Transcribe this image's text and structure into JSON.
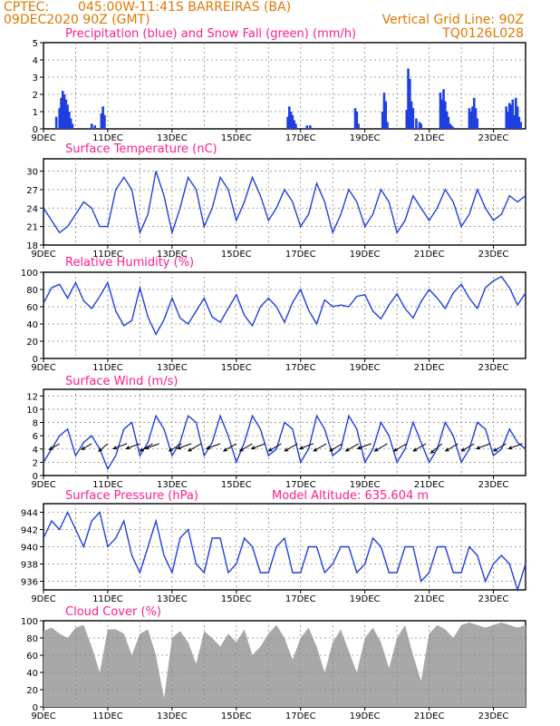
{
  "header": {
    "source": "CPTEC:",
    "location": "045:00W-11:41S  BARREIRAS (BA)",
    "init": "09DEC2020 90Z (GMT)",
    "vgrid": "Vertical Grid Line: 90Z",
    "model": "TQ0126L028"
  },
  "colors": {
    "header": "#e07800",
    "panel_title": "#ff1e8c",
    "line": "#1f3fe0",
    "precip": "#1f3fe0",
    "snow": "#00a000",
    "cloud": "#a8a8a8"
  },
  "chart_data": [
    {
      "type": "bar",
      "title": "Precipitation (blue) and Snow Fall (green) (mm/h)",
      "ylim": [
        0,
        5
      ],
      "yticks": [
        0,
        1,
        2,
        3,
        4,
        5
      ],
      "xlabels": [
        "9DEC",
        "11DEC",
        "13DEC",
        "15DEC",
        "17DEC",
        "19DEC",
        "21DEC",
        "23DEC"
      ],
      "x_days": [
        0,
        15
      ],
      "series": [
        {
          "name": "Precipitation",
          "x": [
            0.4,
            0.5,
            0.55,
            0.6,
            0.65,
            0.7,
            0.75,
            0.8,
            0.85,
            0.9,
            1.5,
            1.6,
            1.8,
            1.85,
            1.9,
            7.6,
            7.65,
            7.7,
            7.75,
            7.8,
            7.85,
            8.2,
            8.3,
            9.7,
            9.75,
            9.8,
            10.55,
            10.6,
            10.65,
            10.7,
            11.3,
            11.35,
            11.4,
            11.45,
            11.5,
            11.6,
            11.7,
            11.75,
            12.35,
            12.4,
            12.45,
            12.5,
            12.55,
            12.6,
            12.65,
            12.7,
            12.75,
            13.25,
            13.3,
            13.35,
            13.4,
            13.45,
            13.5,
            14.4,
            14.45,
            14.5,
            14.55,
            14.6,
            14.65,
            14.7,
            14.75,
            14.8,
            14.85
          ],
          "values": [
            0.7,
            1.2,
            1.8,
            2.2,
            2.0,
            1.7,
            1.4,
            1.0,
            0.6,
            0.3,
            0.3,
            0.2,
            0.9,
            1.3,
            0.8,
            0.7,
            1.3,
            1.0,
            0.8,
            0.5,
            0.3,
            0.2,
            0.2,
            1.2,
            1.0,
            0.3,
            1.0,
            2.1,
            1.6,
            0.4,
            1.1,
            3.5,
            2.9,
            1.6,
            1.2,
            0.6,
            0.4,
            0.3,
            2.1,
            1.7,
            2.3,
            1.6,
            1.0,
            0.7,
            0.3,
            0.2,
            0.1,
            1.2,
            1.0,
            1.3,
            1.8,
            1.2,
            0.6,
            1.3,
            1.0,
            1.5,
            1.4,
            1.7,
            0.8,
            1.8,
            1.3,
            0.7,
            0.4
          ]
        },
        {
          "name": "Snow Fall",
          "x": [],
          "values": []
        }
      ]
    },
    {
      "type": "line",
      "title": "Surface Temperature (nC)",
      "ylim": [
        18,
        32
      ],
      "yticks": [
        18,
        21,
        24,
        27,
        30
      ],
      "xlabels": [
        "9DEC",
        "11DEC",
        "13DEC",
        "15DEC",
        "17DEC",
        "19DEC",
        "21DEC",
        "23DEC"
      ],
      "x_days": [
        0,
        15
      ],
      "x": [
        0,
        0.25,
        0.5,
        0.75,
        1,
        1.25,
        1.5,
        1.75,
        2,
        2.25,
        2.5,
        2.75,
        3,
        3.25,
        3.5,
        3.75,
        4,
        4.25,
        4.5,
        4.75,
        5,
        5.25,
        5.5,
        5.75,
        6,
        6.25,
        6.5,
        6.75,
        7,
        7.25,
        7.5,
        7.75,
        8,
        8.25,
        8.5,
        8.75,
        9,
        9.25,
        9.5,
        9.75,
        10,
        10.25,
        10.5,
        10.75,
        11,
        11.25,
        11.5,
        11.75,
        12,
        12.25,
        12.5,
        12.75,
        13,
        13.25,
        13.5,
        13.75,
        14,
        14.25,
        14.5,
        14.75,
        15
      ],
      "values": [
        24,
        22,
        20,
        21,
        23,
        25,
        24,
        21,
        21,
        27,
        29,
        27,
        20,
        23,
        30,
        26,
        20,
        24,
        29,
        27,
        21,
        24,
        29,
        27,
        22,
        25,
        29,
        26,
        22,
        24,
        27,
        25,
        21,
        23,
        28,
        25,
        20,
        23,
        27,
        25,
        21,
        23,
        27,
        25,
        20,
        22,
        26,
        24,
        22,
        24,
        27,
        25,
        21,
        23,
        27,
        24,
        22,
        23,
        26,
        25,
        26
      ]
    },
    {
      "type": "line",
      "title": "Relative Humidity (%)",
      "ylim": [
        0,
        100
      ],
      "yticks": [
        0,
        20,
        40,
        60,
        80,
        100
      ],
      "xlabels": [
        "9DEC",
        "11DEC",
        "13DEC",
        "15DEC",
        "17DEC",
        "19DEC",
        "21DEC",
        "23DEC"
      ],
      "x_days": [
        0,
        15
      ],
      "x": [
        0,
        0.25,
        0.5,
        0.75,
        1,
        1.25,
        1.5,
        1.75,
        2,
        2.25,
        2.5,
        2.75,
        3,
        3.25,
        3.5,
        3.75,
        4,
        4.25,
        4.5,
        4.75,
        5,
        5.25,
        5.5,
        5.75,
        6,
        6.25,
        6.5,
        6.75,
        7,
        7.25,
        7.5,
        7.75,
        8,
        8.25,
        8.5,
        8.75,
        9,
        9.25,
        9.5,
        9.75,
        10,
        10.25,
        10.5,
        10.75,
        11,
        11.25,
        11.5,
        11.75,
        12,
        12.25,
        12.5,
        12.75,
        13,
        13.25,
        13.5,
        13.75,
        14,
        14.25,
        14.5,
        14.75,
        15
      ],
      "values": [
        64,
        82,
        86,
        70,
        88,
        67,
        58,
        72,
        88,
        55,
        38,
        44,
        82,
        48,
        28,
        45,
        70,
        47,
        40,
        55,
        70,
        48,
        42,
        58,
        74,
        50,
        38,
        60,
        70,
        60,
        42,
        65,
        80,
        56,
        40,
        68,
        60,
        62,
        60,
        72,
        74,
        55,
        46,
        62,
        75,
        58,
        47,
        66,
        80,
        70,
        58,
        76,
        86,
        70,
        58,
        82,
        90,
        95,
        82,
        62,
        76
      ]
    },
    {
      "type": "line",
      "title": "Surface Wind (m/s)",
      "ylim": [
        0,
        13
      ],
      "yticks": [
        0,
        2,
        4,
        6,
        8,
        10,
        12
      ],
      "xlabels": [
        "9DEC",
        "11DEC",
        "13DEC",
        "15DEC",
        "17DEC",
        "19DEC",
        "21DEC",
        "23DEC"
      ],
      "x_days": [
        0,
        15
      ],
      "x": [
        0,
        0.25,
        0.5,
        0.75,
        1,
        1.25,
        1.5,
        1.75,
        2,
        2.25,
        2.5,
        2.75,
        3,
        3.25,
        3.5,
        3.75,
        4,
        4.25,
        4.5,
        4.75,
        5,
        5.25,
        5.5,
        5.75,
        6,
        6.25,
        6.5,
        6.75,
        7,
        7.25,
        7.5,
        7.75,
        8,
        8.25,
        8.5,
        8.75,
        9,
        9.25,
        9.5,
        9.75,
        10,
        10.25,
        10.5,
        10.75,
        11,
        11.25,
        11.5,
        11.75,
        12,
        12.25,
        12.5,
        12.75,
        13,
        13.25,
        13.5,
        13.75,
        14,
        14.25,
        14.5,
        14.75,
        15
      ],
      "values": [
        2,
        4,
        6,
        7,
        3,
        5,
        6,
        4,
        1,
        3,
        7,
        8,
        3,
        5,
        9,
        7,
        3,
        5,
        9,
        8,
        3,
        5,
        9,
        6,
        2,
        5,
        9,
        7,
        3,
        4,
        8,
        7,
        2,
        4,
        9,
        7,
        3,
        4,
        9,
        7,
        2,
        4,
        8,
        6,
        2,
        4,
        8,
        5,
        2,
        4,
        8,
        6,
        2,
        4,
        8,
        7,
        3,
        4,
        7,
        5,
        4
      ],
      "wind_vectors": {
        "x": [
          0.5,
          1.5,
          2.0,
          2.6,
          3.0,
          3.4,
          3.6,
          4.3,
          4.6,
          4.9,
          5.5,
          6.0,
          6.5,
          6.9,
          7.4,
          7.9,
          8.4,
          8.8,
          9.3,
          9.8,
          10.2,
          10.7,
          11.3,
          11.9,
          12.4,
          12.9,
          13.4,
          13.9,
          14.4,
          14.9
        ],
        "dir_deg": [
          60,
          60,
          50,
          70,
          70,
          60,
          70,
          60,
          70,
          60,
          70,
          60,
          60,
          70,
          60,
          60,
          70,
          60,
          60,
          60,
          70,
          60,
          60,
          60,
          50,
          60,
          60,
          70,
          60,
          70
        ],
        "speed": [
          4,
          4,
          4,
          5,
          5,
          5,
          5,
          5,
          5,
          5,
          5,
          5,
          5,
          5,
          5,
          5,
          5,
          5,
          5,
          5,
          5,
          5,
          5,
          5,
          5,
          5,
          5,
          5,
          5,
          5
        ]
      }
    },
    {
      "type": "line",
      "title": "Surface Pressure (hPa)",
      "annotation": "Model Altitude: 635.604 m",
      "ylim": [
        935,
        945
      ],
      "yticks": [
        936,
        938,
        940,
        942,
        944
      ],
      "xlabels": [
        "9DEC",
        "11DEC",
        "13DEC",
        "15DEC",
        "17DEC",
        "19DEC",
        "21DEC",
        "23DEC"
      ],
      "x_days": [
        0,
        15
      ],
      "x": [
        0,
        0.25,
        0.5,
        0.75,
        1,
        1.25,
        1.5,
        1.75,
        2,
        2.25,
        2.5,
        2.75,
        3,
        3.25,
        3.5,
        3.75,
        4,
        4.25,
        4.5,
        4.75,
        5,
        5.25,
        5.5,
        5.75,
        6,
        6.25,
        6.5,
        6.75,
        7,
        7.25,
        7.5,
        7.75,
        8,
        8.25,
        8.5,
        8.75,
        9,
        9.25,
        9.5,
        9.75,
        10,
        10.25,
        10.5,
        10.75,
        11,
        11.25,
        11.5,
        11.75,
        12,
        12.25,
        12.5,
        12.75,
        13,
        13.25,
        13.5,
        13.75,
        14,
        14.25,
        14.5,
        14.75,
        15
      ],
      "values": [
        941,
        943,
        942,
        944,
        942,
        940,
        943,
        944,
        940,
        941,
        943,
        939,
        937,
        940,
        943,
        939,
        937,
        941,
        942,
        938,
        937,
        941,
        941,
        937,
        938,
        941,
        940,
        937,
        937,
        940,
        941,
        937,
        937,
        940,
        940,
        937,
        938,
        940,
        940,
        937,
        938,
        941,
        940,
        937,
        937,
        940,
        940,
        936,
        937,
        940,
        940,
        937,
        937,
        940,
        939,
        936,
        938,
        939,
        938,
        935,
        938
      ]
    },
    {
      "type": "area",
      "title": "Cloud Cover (%)",
      "ylim": [
        0,
        100
      ],
      "yticks": [
        0,
        20,
        40,
        60,
        80,
        100
      ],
      "xlabels": [
        "9DEC",
        "11DEC",
        "13DEC",
        "15DEC",
        "17DEC",
        "19DEC",
        "21DEC",
        "23DEC"
      ],
      "x_days": [
        0,
        15
      ],
      "x": [
        0,
        0.25,
        0.5,
        0.75,
        1,
        1.25,
        1.5,
        1.75,
        2,
        2.25,
        2.5,
        2.75,
        3,
        3.25,
        3.5,
        3.75,
        4,
        4.25,
        4.5,
        4.75,
        5,
        5.25,
        5.5,
        5.75,
        6,
        6.25,
        6.5,
        6.75,
        7,
        7.25,
        7.5,
        7.75,
        8,
        8.25,
        8.5,
        8.75,
        9,
        9.25,
        9.5,
        9.75,
        10,
        10.25,
        10.5,
        10.75,
        11,
        11.25,
        11.5,
        11.75,
        12,
        12.25,
        12.5,
        12.75,
        13,
        13.25,
        13.5,
        13.75,
        14,
        14.25,
        14.5,
        14.75,
        15
      ],
      "values": [
        88,
        92,
        85,
        80,
        92,
        95,
        70,
        40,
        90,
        90,
        85,
        60,
        85,
        90,
        60,
        10,
        80,
        88,
        75,
        50,
        88,
        80,
        70,
        85,
        75,
        90,
        60,
        70,
        85,
        95,
        80,
        55,
        80,
        92,
        70,
        40,
        75,
        90,
        65,
        40,
        80,
        92,
        75,
        45,
        80,
        95,
        60,
        30,
        85,
        95,
        90,
        80,
        95,
        98,
        95,
        92,
        95,
        98,
        95,
        92,
        95
      ]
    }
  ]
}
